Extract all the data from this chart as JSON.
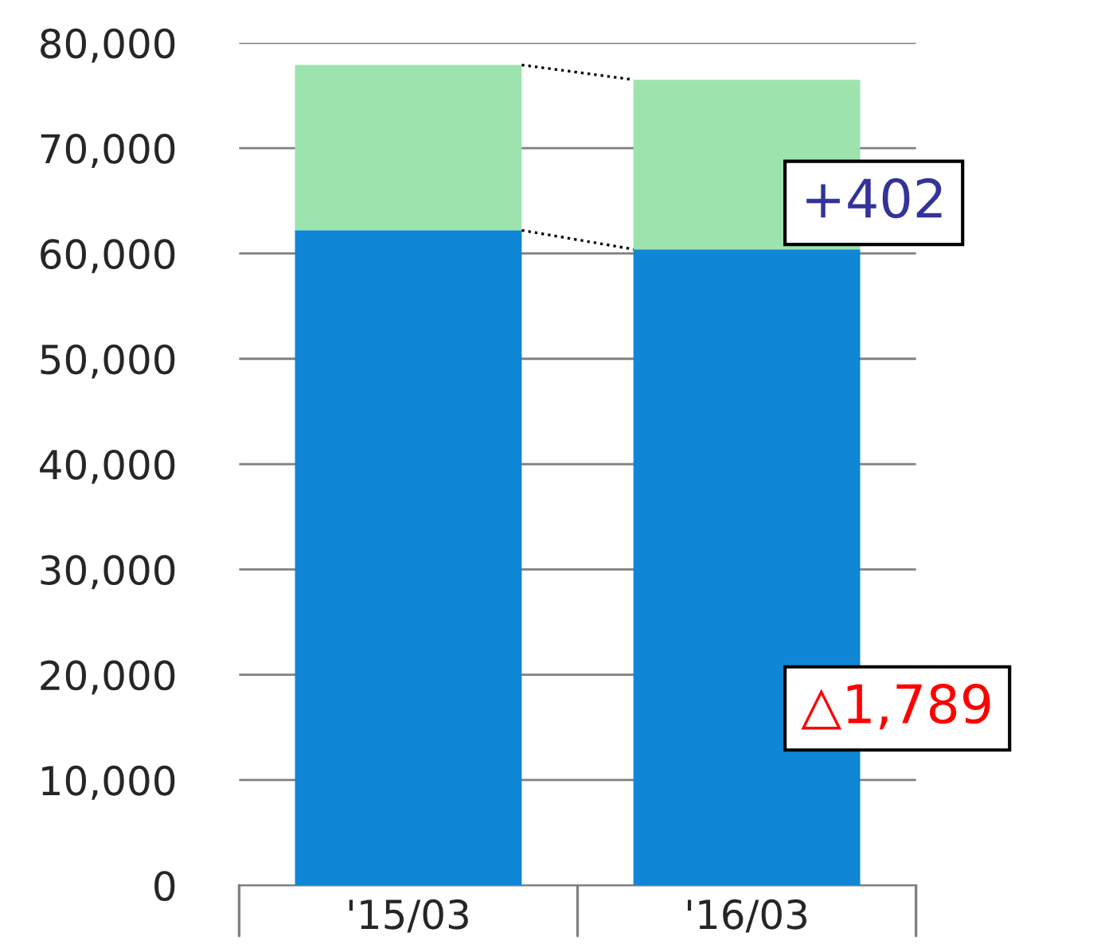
{
  "chart_data": {
    "type": "bar",
    "stacked": true,
    "categories": [
      "'15/03",
      "'16/03"
    ],
    "series": [
      {
        "color": "#0f86d6",
        "values": [
          62200,
          60400
        ]
      },
      {
        "color": "#9de3ae",
        "values": [
          15700,
          16100
        ]
      }
    ],
    "ylim": [
      0,
      80000
    ],
    "yticks": [
      {
        "value": 0,
        "label": "0"
      },
      {
        "value": 10000,
        "label": "10,000"
      },
      {
        "value": 20000,
        "label": "20,000"
      },
      {
        "value": 30000,
        "label": "30,000"
      },
      {
        "value": 40000,
        "label": "40,000"
      },
      {
        "value": 50000,
        "label": "50,000"
      },
      {
        "value": 60000,
        "label": "60,000"
      },
      {
        "value": 70000,
        "label": "70,000"
      },
      {
        "value": 80000,
        "label": "80,000"
      }
    ],
    "grid": "y",
    "annotations": [
      "+402",
      "△1,789"
    ]
  }
}
